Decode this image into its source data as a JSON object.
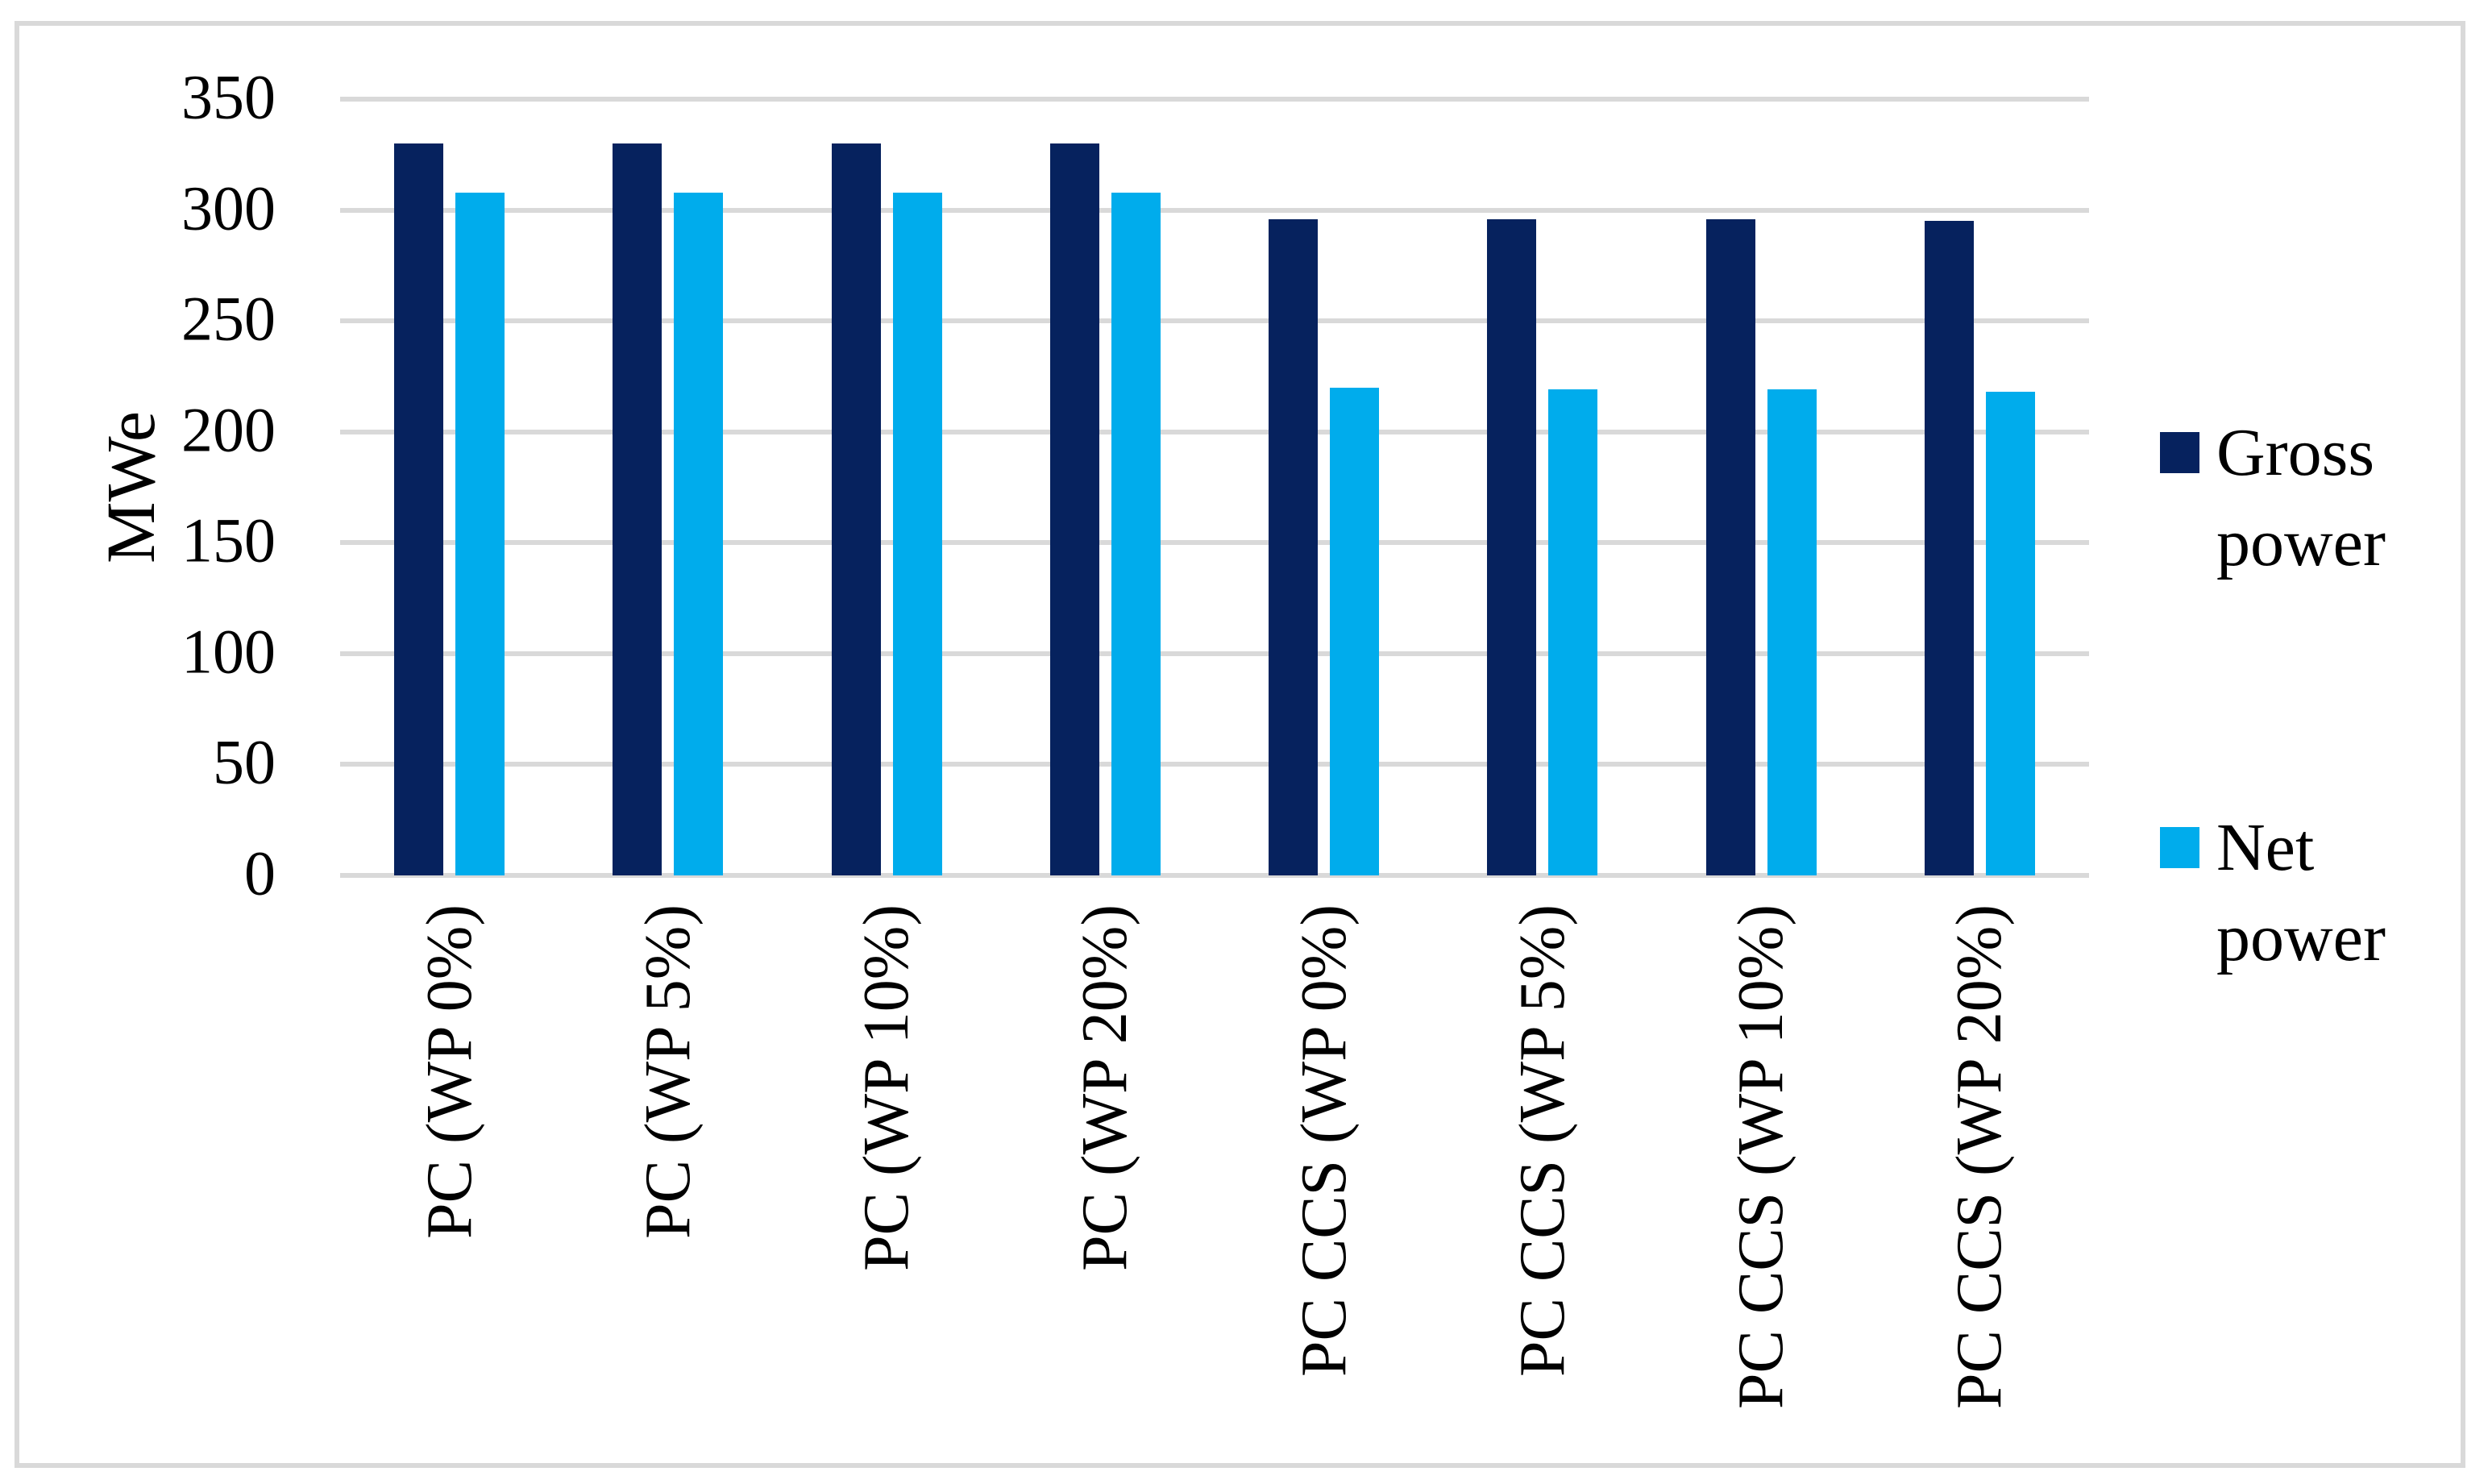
{
  "chart_data": {
    "type": "bar",
    "title": "",
    "xlabel": "",
    "ylabel": "MWe",
    "ylim": [
      0,
      350
    ],
    "yticks": [
      0,
      50,
      100,
      150,
      200,
      250,
      300,
      350
    ],
    "grid": true,
    "gridline_color": "#D9D9D9",
    "legend_position": "right",
    "categories": [
      "PC (WP 0%)",
      "PC (WP 5%)",
      "PC (WP 10%)",
      "PC (WP 20%)",
      "PC CCS (WP 0%)",
      "PC CCS (WP 5%)",
      "PC CCS (WP 10%)",
      "PC CCS (WP 20%)"
    ],
    "series": [
      {
        "name": "Gross power",
        "color": "#06225E",
        "values": [
          330,
          330,
          330,
          330,
          296,
          296,
          296,
          295
        ]
      },
      {
        "name": "Net power",
        "color": "#00ACEC",
        "values": [
          308,
          308,
          308,
          308,
          220,
          219,
          219,
          218
        ]
      }
    ]
  },
  "figure": {
    "background_color": "#FFFFFF",
    "frame_color": "#D9D9D9"
  }
}
